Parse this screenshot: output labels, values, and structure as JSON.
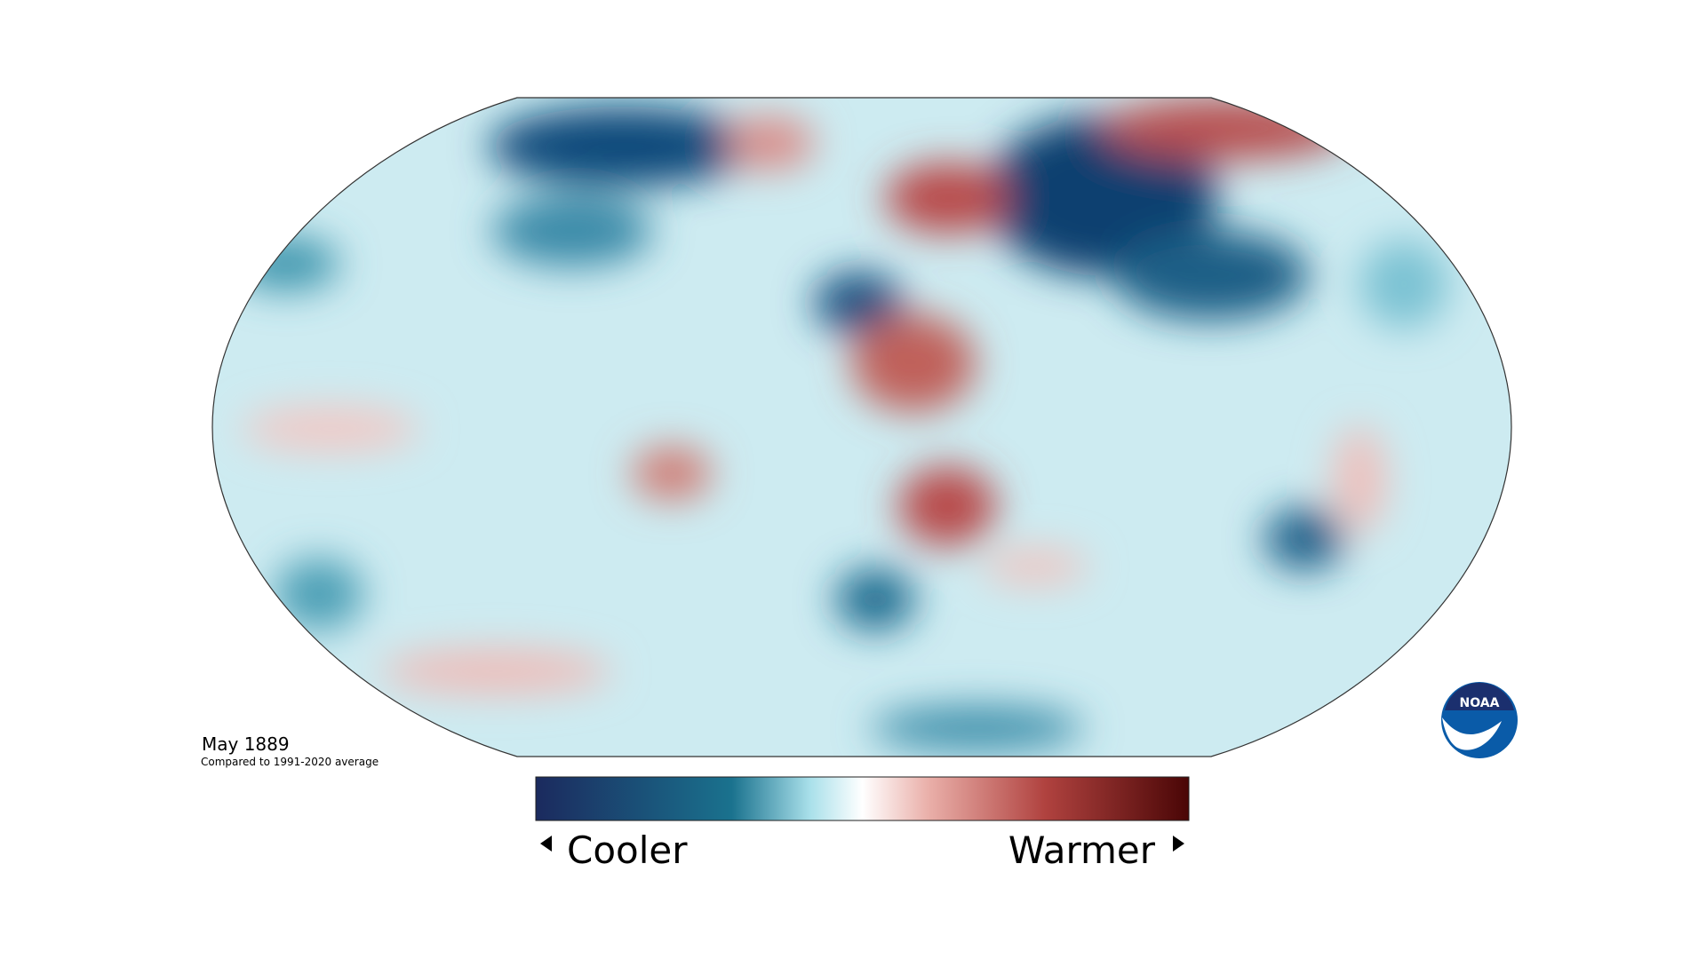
{
  "map": {
    "title": "May 1889",
    "subtitle": "Compared to 1991-2020 average"
  },
  "legend": {
    "low_label": "Cooler",
    "high_label": "Warmer"
  },
  "logo": {
    "text": "NOAA"
  }
}
